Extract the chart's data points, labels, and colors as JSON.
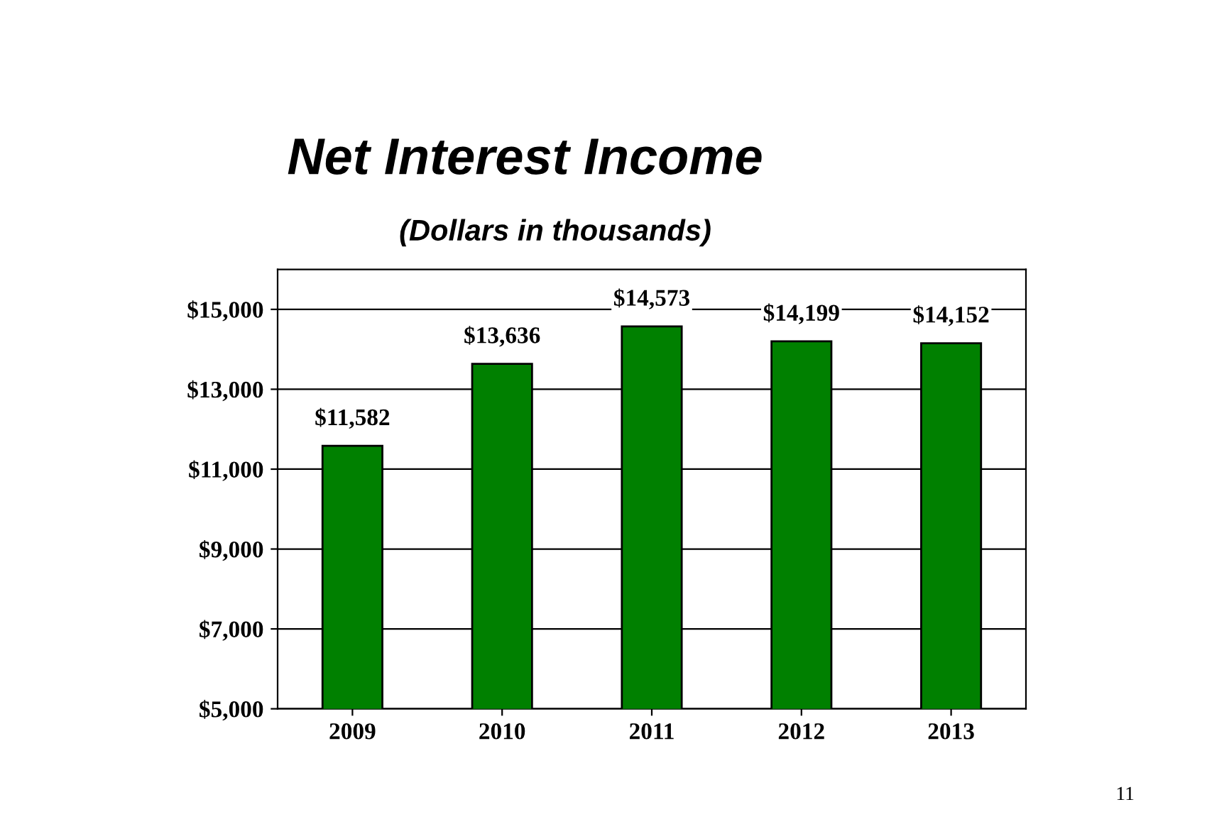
{
  "chart_data": {
    "type": "bar",
    "title": "Net Interest Income",
    "subtitle": "(Dollars in thousands)",
    "categories": [
      "2009",
      "2010",
      "2011",
      "2012",
      "2013"
    ],
    "values": [
      11582,
      13636,
      14573,
      14199,
      14152
    ],
    "value_labels": [
      "$11,582",
      "$13,636",
      "$14,573",
      "$14,199",
      "$14,152"
    ],
    "color": "#008000",
    "ylim": [
      5000,
      16000
    ],
    "yticks": [
      {
        "value": 5000,
        "label": "$5,000"
      },
      {
        "value": 7000,
        "label": "$7,000"
      },
      {
        "value": 9000,
        "label": "$9,000"
      },
      {
        "value": 11000,
        "label": "$11,000"
      },
      {
        "value": 13000,
        "label": "$13,000"
      },
      {
        "value": 15000,
        "label": "$15,000"
      }
    ],
    "grid": "y",
    "annotations": [
      "11"
    ]
  }
}
